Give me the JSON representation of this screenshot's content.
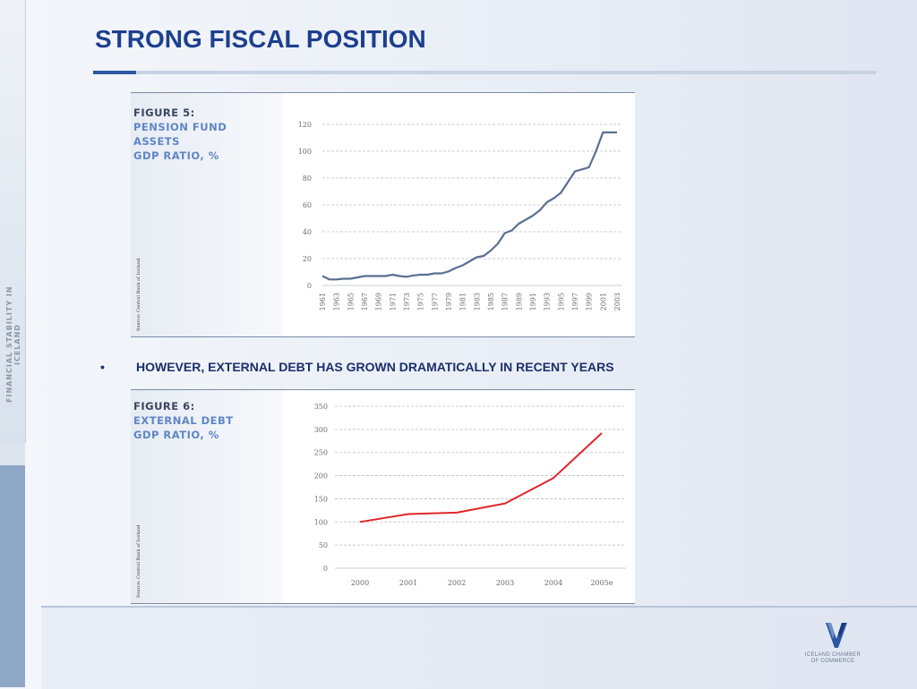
{
  "slide": {
    "title": "STRONG FISCAL POSITION",
    "side_text": "FINANCIAL STABILITY IN ICELAND",
    "bullet": "•",
    "bullet_text": "HOWEVER, EXTERNAL DEBT HAS GROWN DRAMATICALLY IN RECENT YEARS",
    "logo_text_1": "ICELAND CHAMBER",
    "logo_text_2": "OF COMMERCE"
  },
  "figure5": {
    "title_line1": "FIGURE 5:",
    "title_line2": "PENSION FUND",
    "title_line3": "ASSETS",
    "title_line4": "GDP RATIO, %",
    "source": "Source: Central Bank of Iceland"
  },
  "figure6": {
    "title_line1": "FIGURE 6:",
    "title_line2": "EXTERNAL DEBT",
    "title_line3": "GDP RATIO, %",
    "source": "Source: Central Bank of Iceland"
  },
  "colors": {
    "title": "#1d3f8e",
    "pension_line": "#5a6f92",
    "debt_line": "#e0262a"
  },
  "chart_data": [
    {
      "type": "line",
      "title": "PENSION FUND ASSETS GDP RATIO, %",
      "x": [
        1961,
        1962,
        1963,
        1964,
        1965,
        1966,
        1967,
        1968,
        1969,
        1970,
        1971,
        1972,
        1973,
        1974,
        1975,
        1976,
        1977,
        1978,
        1979,
        1980,
        1981,
        1982,
        1983,
        1984,
        1985,
        1986,
        1987,
        1988,
        1989,
        1990,
        1991,
        1992,
        1993,
        1994,
        1995,
        1996,
        1997,
        1998,
        1999,
        2000,
        2001,
        2002,
        2003
      ],
      "x_tick_labels": [
        "1961",
        "1963",
        "1965",
        "1967",
        "1969",
        "1971",
        "1973",
        "1975",
        "1977",
        "1979",
        "1981",
        "1983",
        "1985",
        "1987",
        "1989",
        "1991",
        "1993",
        "1995",
        "1997",
        "1999",
        "2001",
        "2003"
      ],
      "series": [
        {
          "values": [
            7,
            4.5,
            4.5,
            5,
            5,
            6,
            7,
            7,
            7,
            7,
            8,
            7,
            6.5,
            7.5,
            8,
            8,
            9,
            9,
            10.5,
            13,
            15,
            18,
            21,
            22,
            26,
            31,
            39,
            41,
            46,
            49,
            52,
            56,
            62,
            65,
            69,
            77,
            85,
            86.5,
            88,
            100,
            114,
            114,
            114
          ],
          "color": "#5a6f92"
        }
      ],
      "ylim": [
        0,
        120
      ],
      "y_ticks": [
        0,
        20,
        40,
        60,
        80,
        100,
        120
      ],
      "grid": "horizontal dashed"
    },
    {
      "type": "line",
      "title": "EXTERNAL DEBT GDP RATIO, %",
      "categories": [
        "2000",
        "2001",
        "2002",
        "2003",
        "2004",
        "2005e"
      ],
      "series": [
        {
          "values": [
            100,
            117,
            120,
            140,
            195,
            292
          ],
          "color": "#e0262a"
        }
      ],
      "ylim": [
        0,
        350
      ],
      "y_ticks": [
        0,
        50,
        100,
        150,
        200,
        250,
        300,
        350
      ],
      "grid": "horizontal dashed"
    }
  ]
}
